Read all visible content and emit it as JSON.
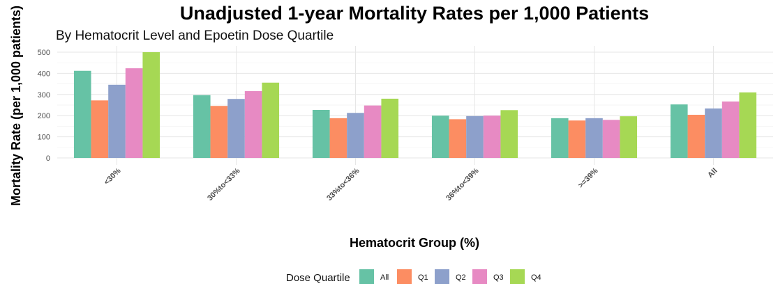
{
  "chart_data": {
    "type": "bar",
    "title": "Unadjusted 1-year Mortality Rates per 1,000 Patients",
    "subtitle": "By Hematocrit Level and Epoetin Dose Quartile",
    "xlabel": "Hematocrit Group (%)",
    "ylabel": "Mortality Rate (per 1,000 patients)",
    "ylim": [
      0,
      520
    ],
    "yticks": [
      0,
      100,
      200,
      300,
      400,
      500
    ],
    "categories": [
      "<30%",
      "30%to<33%",
      "33%to<36%",
      "36%to<39%",
      ">=39%",
      "All"
    ],
    "series": [
      {
        "name": "All",
        "color": "#66C2A5",
        "values": [
          412,
          297,
          227,
          200,
          188,
          253
        ]
      },
      {
        "name": "Q1",
        "color": "#FC8D62",
        "values": [
          272,
          246,
          188,
          183,
          177,
          204
        ]
      },
      {
        "name": "Q2",
        "color": "#8DA0CB",
        "values": [
          346,
          279,
          213,
          198,
          188,
          234
        ]
      },
      {
        "name": "Q3",
        "color": "#E78AC3",
        "values": [
          424,
          316,
          248,
          200,
          180,
          267
        ]
      },
      {
        "name": "Q4",
        "color": "#A6D854",
        "values": [
          500,
          356,
          280,
          226,
          197,
          310
        ]
      }
    ],
    "legend": {
      "title": "Dose Quartile",
      "position": "bottom"
    },
    "grid": true
  }
}
